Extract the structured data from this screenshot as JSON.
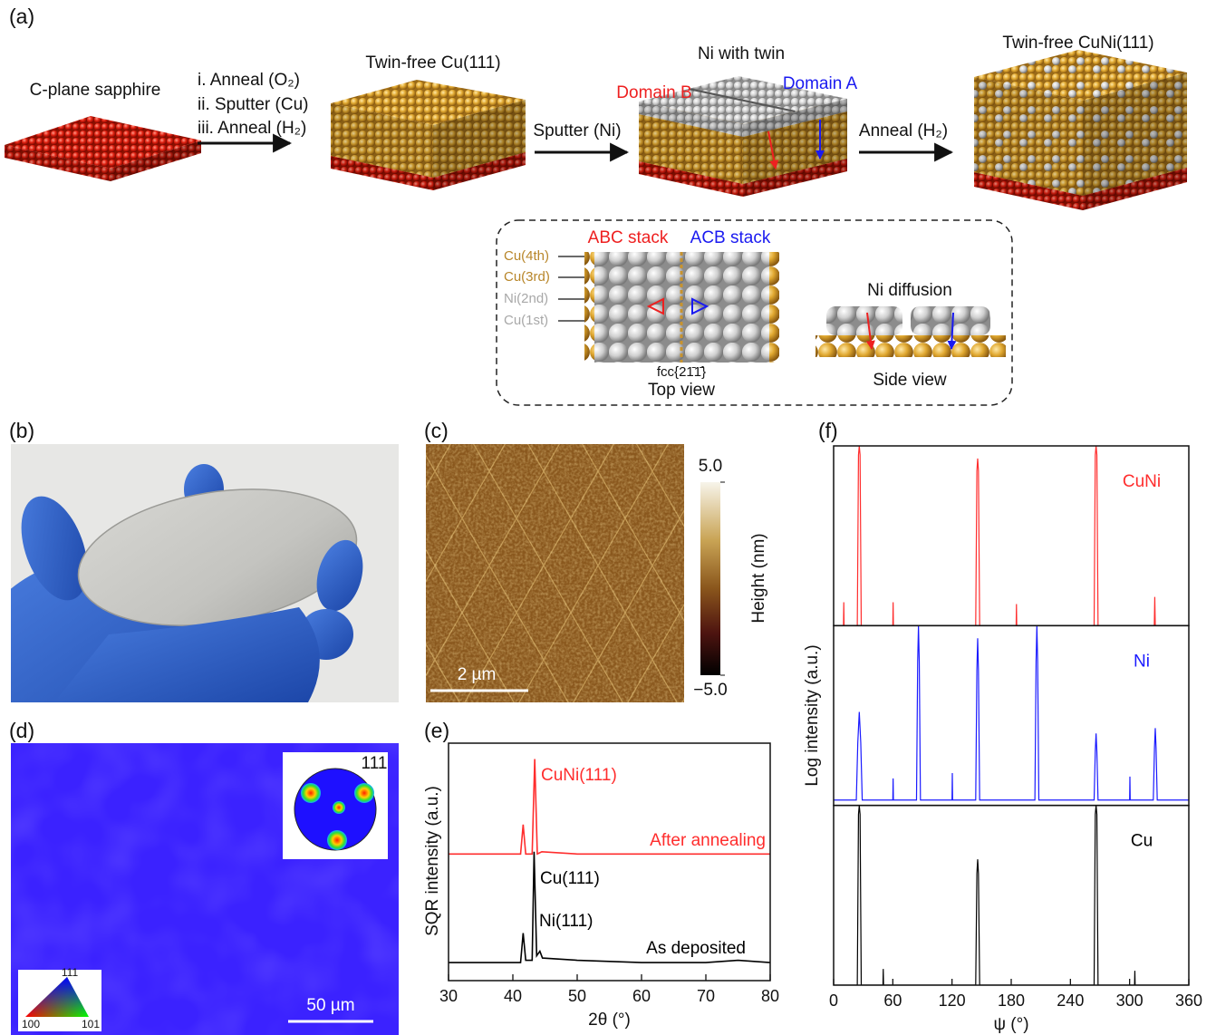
{
  "panel_labels": [
    "(a)",
    "(b)",
    "(c)",
    "(d)",
    "(e)",
    "(f)"
  ],
  "schematic": {
    "start": "C-plane sapphire",
    "step1": [
      "i. Anneal (O₂)",
      "ii. Sputter (Cu)",
      "iii. Anneal (H₂)"
    ],
    "stage2": "Twin-free Cu(111)",
    "step2": "Sputter (Ni)",
    "stage3": "Ni with twin",
    "domain_b": "Domain B",
    "domain_a": "Domain A",
    "step3": "Anneal (H₂)",
    "stage4": "Twin-free CuNi(111)",
    "inset": {
      "abc": "ABC stack",
      "acb": "ACB stack",
      "layers": [
        "Cu(4th)",
        "Cu(3rd)",
        "Ni(2nd)",
        "Cu(1st)"
      ],
      "plane": "fcc{21̄1̄}",
      "top_view": "Top view",
      "diffusion": "Ni diffusion",
      "side_view": "Side view"
    }
  },
  "afm": {
    "scale_bar": "2 µm",
    "colorbar": {
      "label": "Height (nm)",
      "lim": [
        -5,
        5
      ],
      "ticks": [
        {
          "value": 5,
          "label": "5.0"
        },
        {
          "value": -5,
          "label": "−5.0"
        }
      ]
    }
  },
  "ebsd": {
    "pole_figure": "111",
    "ipf": [
      "111",
      "100",
      "101"
    ],
    "scale_bar": "50 µm"
  },
  "chart_data": [
    {
      "type": "line",
      "xlabel": "2θ (°)",
      "ylabel": "SQR intensity (a.u.)",
      "xlim": [
        30,
        80
      ],
      "xticks": [
        30,
        40,
        50,
        60,
        70,
        80
      ],
      "ylim": [
        0,
        10.5
      ],
      "annotations": [
        "CuNi(111)",
        "Cu(111)",
        "Ni(111)"
      ],
      "series": [
        {
          "name": "After annealing",
          "color": "#ff2d2d",
          "x": [
            30,
            41.2,
            41.6,
            42,
            43.0,
            43.4,
            43.8,
            44.5,
            50,
            60,
            70,
            80
          ],
          "values": [
            5.6,
            5.6,
            6.9,
            5.6,
            5.6,
            9.8,
            5.6,
            5.7,
            5.6,
            5.6,
            5.6,
            5.6
          ]
        },
        {
          "name": "As deposited",
          "color": "#000000",
          "x": [
            30,
            41.2,
            41.6,
            42,
            43.0,
            43.3,
            43.7,
            44.2,
            44.6,
            50,
            60,
            70,
            75,
            80
          ],
          "values": [
            0.8,
            0.8,
            2.1,
            0.9,
            0.9,
            5.7,
            1.1,
            1.3,
            1.0,
            0.9,
            0.8,
            0.8,
            0.9,
            0.8
          ]
        }
      ]
    },
    {
      "type": "line",
      "subplots": true,
      "xlabel": "ψ (°)",
      "ylabel": "Log intensity (a.u.)",
      "xlim": [
        0,
        360
      ],
      "xticks": [
        0,
        60,
        120,
        180,
        240,
        300,
        360
      ],
      "ylim": [
        0,
        10
      ],
      "series": [
        {
          "name": "CuNi",
          "color": "#ff2d2d",
          "x": [
            0,
            10,
            10.3,
            10.6,
            24,
            25.2,
            26,
            26.8,
            28,
            60,
            60.3,
            60.6,
            144,
            145.2,
            146,
            146.8,
            148,
            185,
            185.3,
            185.6,
            264,
            265.2,
            266,
            266.8,
            268,
            325,
            325.5,
            326,
            360
          ],
          "values": [
            0,
            0,
            1.3,
            0,
            0,
            9.5,
            10,
            9.5,
            0,
            0,
            1.3,
            0,
            0,
            8.6,
            9.3,
            8.6,
            0,
            0,
            1.2,
            0,
            0,
            9.5,
            10,
            9.5,
            0,
            0,
            1.6,
            0,
            0
          ]
        },
        {
          "name": "Ni",
          "color": "#1a1aff",
          "x": [
            0,
            23,
            24.5,
            26,
            27.5,
            29,
            60,
            60.3,
            60.6,
            84,
            85.2,
            86,
            86.8,
            88,
            120,
            120.3,
            120.6,
            144,
            145.2,
            146,
            146.8,
            148,
            204,
            205.2,
            206,
            206.8,
            208,
            264,
            265.2,
            266,
            266.8,
            268,
            300,
            300.3,
            300.6,
            324,
            325.2,
            326,
            326.8,
            328,
            360
          ],
          "values": [
            0.3,
            0.3,
            3.5,
            5.2,
            3.5,
            0.3,
            0.3,
            1.5,
            0.3,
            0.3,
            8,
            10,
            8,
            0.3,
            0.3,
            1.8,
            0.3,
            0.3,
            7.5,
            9.3,
            7.5,
            0.3,
            0.3,
            8,
            10,
            8,
            0.3,
            0.3,
            3,
            4,
            3,
            0.3,
            0.3,
            1.6,
            0.3,
            0.3,
            3.2,
            4.3,
            3.2,
            0.3,
            0.3
          ]
        },
        {
          "name": "Cu",
          "color": "#000000",
          "x": [
            0,
            24,
            25.2,
            26,
            26.8,
            28,
            50,
            50.3,
            50.6,
            144,
            145.2,
            146,
            146.8,
            148,
            264,
            265.2,
            266,
            266.8,
            268,
            305,
            305.3,
            305.6,
            360
          ],
          "values": [
            0,
            0,
            9.5,
            10,
            9.5,
            0,
            0,
            0.9,
            0,
            0,
            6.2,
            7,
            6.2,
            0,
            0,
            9.5,
            10,
            9.5,
            0,
            0,
            0.8,
            0,
            0
          ]
        }
      ]
    }
  ]
}
